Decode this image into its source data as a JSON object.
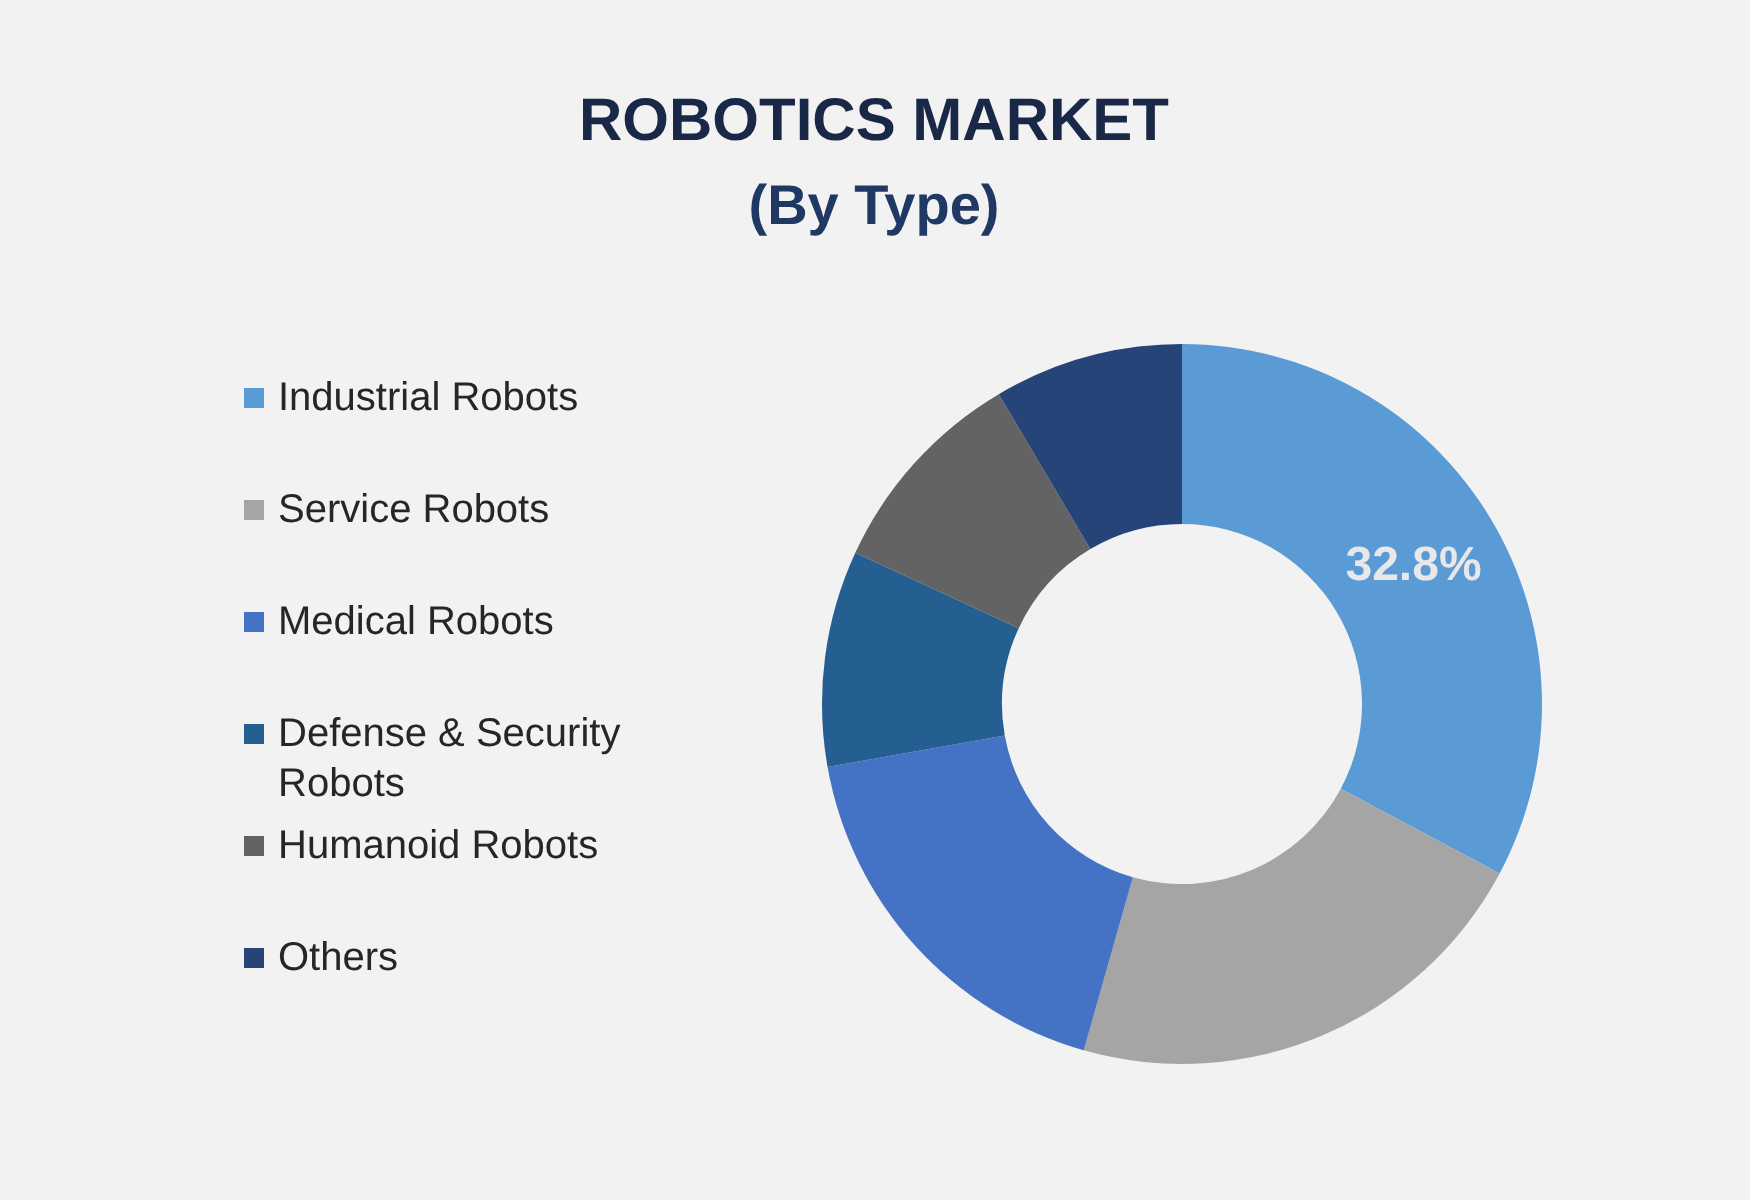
{
  "chart_data": {
    "type": "donut",
    "title": "ROBOTICS MARKET",
    "subtitle": "(By Type)",
    "categories": [
      "Industrial Robots",
      "Service Robots",
      "Medical Robots",
      "Defense & Security Robots",
      "Humanoid Robots",
      "Others"
    ],
    "values": [
      32.8,
      21.6,
      17.8,
      9.7,
      9.6,
      8.5
    ],
    "colors": [
      "#5b9bd5",
      "#a5a5a5",
      "#4472c4",
      "#255e91",
      "#636363",
      "#264478"
    ],
    "value_labels": [
      "32.8%",
      null,
      null,
      null,
      null,
      null
    ],
    "legend": "left"
  }
}
